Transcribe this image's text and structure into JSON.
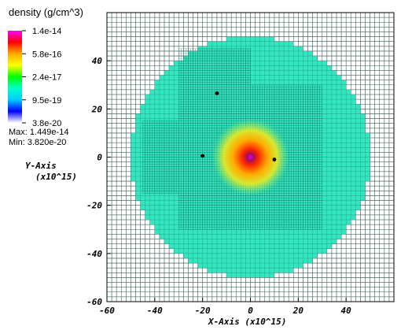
{
  "chart_data": {
    "type": "heatmap",
    "title": "",
    "variable": "density (g/cm^3)",
    "colorbar": {
      "ticks": [
        "1.4e-14",
        "5.8e-16",
        "2.4e-17",
        "9.5e-19",
        "3.8e-20"
      ],
      "stops": [
        "#ff00ff",
        "#ff0000",
        "#ffaa00",
        "#ffff00",
        "#00ff00",
        "#00ffcc",
        "#00ccff",
        "#0000ff",
        "#ffffff"
      ],
      "max_label": "Max:  1.449e-14",
      "min_label": "Min:  3.820e-20"
    },
    "xlabel": "X-Axis  (x10^15)",
    "ylabel_line1": "Y-Axis",
    "ylabel_line2": "(x10^15)",
    "xlim": [
      -60,
      60
    ],
    "ylim": [
      -60,
      60
    ],
    "xticks": [
      "-60",
      "-40",
      "-20",
      "0",
      "20",
      "40"
    ],
    "yticks": [
      "40",
      "20",
      "0",
      "-20",
      "-40",
      "-60"
    ],
    "domain_radius": 50,
    "background_color": "#33e6c0",
    "refined_regions": [
      {
        "x": [
          -30,
          30
        ],
        "y": [
          -30,
          30
        ]
      },
      {
        "x": [
          -30,
          0
        ],
        "y": [
          30,
          45
        ]
      },
      {
        "x": [
          -45,
          -30
        ],
        "y": [
          -15,
          15
        ]
      }
    ],
    "central_peak": {
      "x": 0,
      "y": 0
    },
    "points": [
      {
        "x": -14,
        "y": 26.5
      },
      {
        "x": -20,
        "y": 0.5
      },
      {
        "x": 10,
        "y": -1
      }
    ],
    "grid": true
  }
}
